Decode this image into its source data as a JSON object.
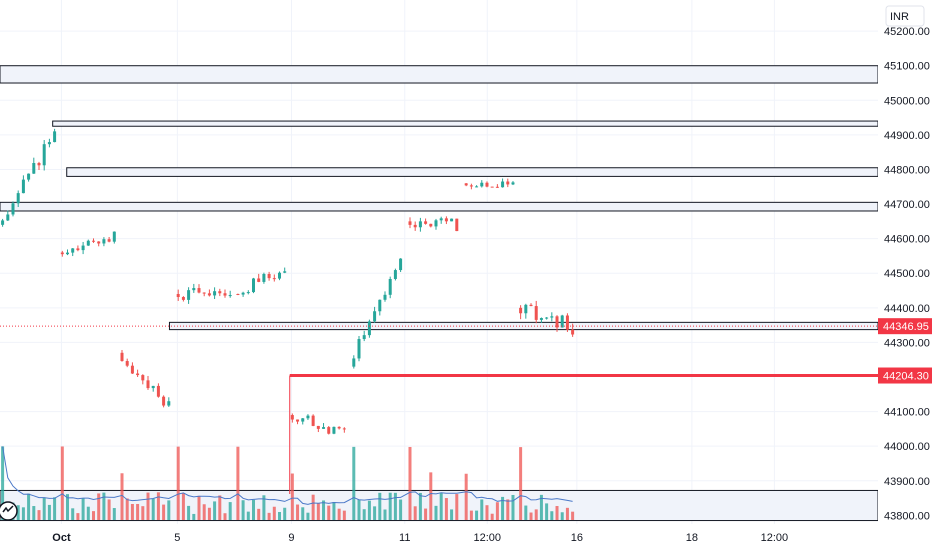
{
  "currency": "INR",
  "colors": {
    "up": "#26a69a",
    "down": "#ef5350",
    "volume_up": "#26a69a",
    "volume_down": "#ef5350",
    "volume_ma": "#4a78c8",
    "zone_fill": "#f0f3fa",
    "zone_stroke": "#131722",
    "price_line": "#f23645",
    "grid": "#f0f3fa"
  },
  "logo_icon": "tradingview-logo-icon",
  "chart_data": {
    "type": "candlestick",
    "title": "",
    "ylabel": "INR",
    "ylim": [
      43775,
      45290
    ],
    "xlim": [
      0,
      1000
    ],
    "grid": true,
    "y_ticks": [
      {
        "value": 45200,
        "label": "45200.00"
      },
      {
        "value": 45100,
        "label": "45100.00"
      },
      {
        "value": 45000,
        "label": "45000.00"
      },
      {
        "value": 44900,
        "label": "44900.00"
      },
      {
        "value": 44800,
        "label": "44800.00"
      },
      {
        "value": 44700,
        "label": "44700.00"
      },
      {
        "value": 44600,
        "label": "44600.00"
      },
      {
        "value": 44500,
        "label": "44500.00"
      },
      {
        "value": 44400,
        "label": "44400.00"
      },
      {
        "value": 44300,
        "label": "44300.00"
      },
      {
        "value": 44100,
        "label": "44100.00"
      },
      {
        "value": 44000,
        "label": "44000.00"
      },
      {
        "value": 43900,
        "label": "43900.00"
      },
      {
        "value": 43800,
        "label": "43800.00"
      }
    ],
    "x_ticks": [
      {
        "label": "Oct",
        "x": 70,
        "bold": true
      },
      {
        "label": "5",
        "x": 202
      },
      {
        "label": "9",
        "x": 332
      },
      {
        "label": "11",
        "x": 461
      },
      {
        "label": "12:00",
        "x": 555
      },
      {
        "label": "16",
        "x": 657
      },
      {
        "label": "18",
        "x": 788
      },
      {
        "label": "12:00",
        "x": 882
      }
    ],
    "current_price": {
      "value": 44346.95,
      "label": "44346.95"
    },
    "level_line": {
      "value": 44204.3,
      "label": "44204.30",
      "x_start": 330
    },
    "zones": [
      {
        "x_start": 0,
        "high": 45100,
        "low": 45050
      },
      {
        "x_start": 60,
        "high": 44940,
        "low": 44925
      },
      {
        "x_start": 76,
        "high": 44805,
        "low": 44780
      },
      {
        "x_start": 0,
        "high": 44705,
        "low": 44680
      },
      {
        "x_start": 193,
        "high": 44358,
        "low": 44337
      },
      {
        "x_start": 0,
        "high": 43872,
        "low": 43785
      }
    ],
    "segments": [
      {
        "x_start": 0,
        "x_end": 68,
        "open": 44640,
        "close": 44905,
        "volatility": 20,
        "seed": 11
      },
      {
        "x_start": 68,
        "x_end": 136,
        "open": 44560,
        "close": 44605,
        "volatility": 16,
        "seed": 23
      },
      {
        "x_start": 136,
        "x_end": 200,
        "open": 44270,
        "close": 44120,
        "volatility": 16,
        "seed": 37
      },
      {
        "x_start": 200,
        "x_end": 268,
        "open": 44440,
        "close": 44440,
        "volatility": 16,
        "seed": 41
      },
      {
        "x_start": 268,
        "x_end": 330,
        "open": 44440,
        "close": 44520,
        "volatility": 18,
        "seed": 53
      },
      {
        "x_start": 330,
        "x_end": 400,
        "open": 44090,
        "close": 44040,
        "volatility": 16,
        "seed": 67
      },
      {
        "x_start": 400,
        "x_end": 464,
        "open": 44230,
        "close": 44550,
        "volatility": 16,
        "seed": 71
      },
      {
        "x_start": 464,
        "x_end": 528,
        "open": 44650,
        "close": 44640,
        "volatility": 18,
        "seed": 83
      },
      {
        "x_start": 528,
        "x_end": 590,
        "open": 44760,
        "close": 44760,
        "volatility": 12,
        "seed": 97
      },
      {
        "x_start": 590,
        "x_end": 657,
        "open": 44400,
        "close": 44347,
        "volatility": 22,
        "seed": 101
      }
    ]
  }
}
